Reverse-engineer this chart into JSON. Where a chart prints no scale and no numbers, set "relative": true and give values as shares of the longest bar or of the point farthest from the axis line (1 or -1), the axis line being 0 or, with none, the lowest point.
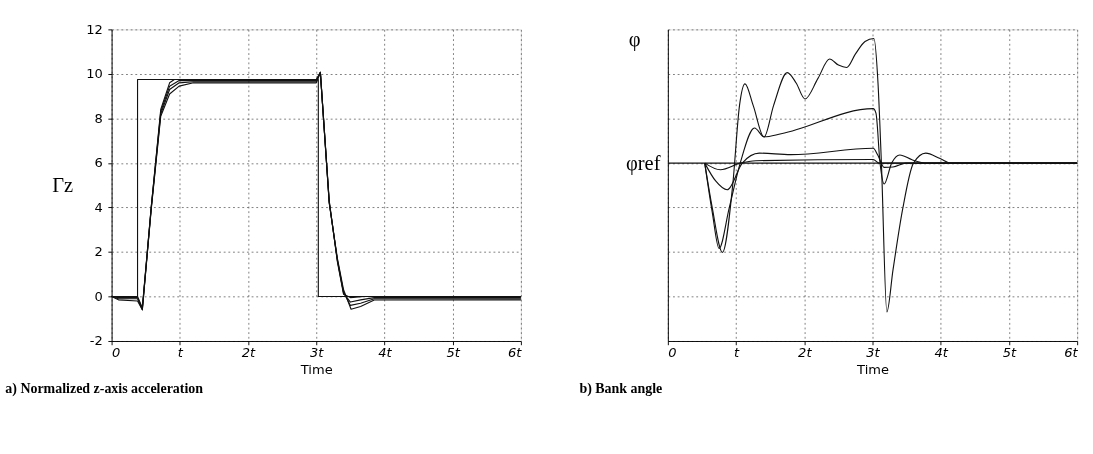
{
  "chart_data": [
    {
      "type": "line",
      "title": "a) Normalized z-axis acceleration",
      "xlabel": "Time",
      "ylabel": "Γz",
      "grid": true,
      "xlim": [
        0,
        6
      ],
      "xticks": [
        0,
        {
          "value": 1,
          "label": "t"
        },
        {
          "value": 2,
          "label": "2t"
        },
        {
          "value": 3,
          "label": "3t"
        },
        {
          "value": 4,
          "label": "4t"
        },
        {
          "value": 5,
          "label": "5t"
        },
        {
          "value": 6,
          "label": "6t"
        }
      ],
      "ylim": [
        -2,
        12
      ],
      "yticks": [
        -2,
        0,
        2,
        4,
        6,
        8,
        10,
        12
      ],
      "series": [
        {
          "color": "#111111",
          "x": [
            0,
            0.38,
            0.38,
            3.03,
            3.03,
            6
          ],
          "values": [
            0,
            0,
            9.75,
            9.75,
            0,
            0
          ]
        },
        {
          "color": "#111111",
          "x": [
            0,
            0.1,
            0.38,
            0.45,
            0.58,
            0.72,
            0.85,
            0.99,
            1.2,
            2.9,
            3.0,
            3.06,
            3.19,
            3.31,
            3.4,
            3.51,
            3.65,
            3.85,
            6
          ],
          "values": [
            0,
            -0.15,
            -0.2,
            -0.6,
            3.9,
            8.1,
            9.1,
            9.45,
            9.6,
            9.6,
            9.6,
            10.05,
            4.2,
            1.7,
            0.3,
            -0.57,
            -0.45,
            -0.16,
            -0.15
          ]
        },
        {
          "color": "#111111",
          "x": [
            0,
            0.1,
            0.38,
            0.45,
            0.58,
            0.72,
            0.85,
            0.99,
            1.2,
            2.9,
            3.0,
            3.06,
            3.19,
            3.31,
            3.4,
            3.5,
            3.65,
            3.85,
            6
          ],
          "values": [
            0,
            -0.1,
            -0.1,
            -0.6,
            3.95,
            8.2,
            9.3,
            9.6,
            9.65,
            9.65,
            9.65,
            10.07,
            4.2,
            1.65,
            0.2,
            -0.4,
            -0.3,
            -0.1,
            -0.1
          ]
        },
        {
          "color": "#111111",
          "x": [
            0,
            0.1,
            0.38,
            0.45,
            0.58,
            0.72,
            0.85,
            0.99,
            1.2,
            2.9,
            3.0,
            3.06,
            3.19,
            3.31,
            3.4,
            3.5,
            3.65,
            3.85,
            6
          ],
          "values": [
            0,
            -0.05,
            -0.05,
            -0.55,
            4.0,
            8.3,
            9.45,
            9.7,
            9.7,
            9.7,
            9.7,
            10.07,
            4.25,
            1.6,
            0.15,
            -0.25,
            -0.15,
            -0.05,
            -0.05
          ]
        },
        {
          "color": "#111111",
          "x": [
            0,
            0.38,
            0.45,
            0.58,
            0.72,
            0.85,
            0.92,
            1.2,
            2.9,
            3.0,
            3.06,
            3.19,
            3.31,
            3.4,
            3.5,
            3.7,
            6
          ],
          "values": [
            0,
            0,
            -0.5,
            4.0,
            8.4,
            9.6,
            9.75,
            9.75,
            9.75,
            9.75,
            10.07,
            4.3,
            1.55,
            0.1,
            -0.05,
            0,
            0
          ]
        }
      ]
    },
    {
      "type": "line",
      "title": "b) Bank angle",
      "xlabel": "Time",
      "ylabel": "φ",
      "grid": true,
      "relative": true,
      "annotations": [
        "φref"
      ],
      "xlim": [
        0,
        6
      ],
      "xticks": [
        0,
        {
          "value": 1,
          "label": "t"
        },
        {
          "value": 2,
          "label": "2t"
        },
        {
          "value": 3,
          "label": "3t"
        },
        {
          "value": 4,
          "label": "4t"
        },
        {
          "value": 5,
          "label": "5t"
        },
        {
          "value": 6,
          "label": "6t"
        }
      ],
      "series": [
        {
          "color": "#111111",
          "x": [
            0,
            6
          ],
          "values": [
            0.588,
            0.588
          ]
        },
        {
          "color": "#111111",
          "x": [
            0.54,
            0.65,
            0.8,
            0.95,
            1.05,
            1.13,
            1.25,
            1.41,
            1.55,
            1.75,
            1.88,
            2.01,
            2.2,
            2.37,
            2.5,
            2.62,
            2.75,
            2.89,
            3.02,
            3.08,
            3.13,
            3.21,
            3.3,
            3.44,
            3.6,
            3.78,
            3.99,
            4.15,
            6
          ],
          "values": [
            0.588,
            0.441,
            0.293,
            0.515,
            0.779,
            0.85,
            0.779,
            0.674,
            0.779,
            0.887,
            0.853,
            0.8,
            0.868,
            0.932,
            0.912,
            0.904,
            0.949,
            0.99,
            1,
            0.853,
            0.588,
            0.096,
            0.235,
            0.434,
            0.588,
            0.621,
            0.603,
            0.588,
            0.588
          ]
        },
        {
          "color": "#111111",
          "x": [
            0.54,
            0.65,
            0.75,
            0.9,
            1.06,
            1.27,
            1.41,
            1.66,
            3.01,
            3.05,
            3.11,
            3.17,
            3.28,
            3.4,
            3.58,
            3.81,
            6
          ],
          "values": [
            0.588,
            0.426,
            0.306,
            0.441,
            0.588,
            0.704,
            0.675,
            0.685,
            0.768,
            0.753,
            0.588,
            0.519,
            0.588,
            0.615,
            0.599,
            0.588,
            0.588
          ]
        },
        {
          "color": "#111111",
          "x": [
            0.54,
            0.7,
            0.87,
            1.09,
            1.34,
            1.8,
            3.01,
            3.08,
            3.17,
            3.3,
            3.49,
            6
          ],
          "values": [
            0.588,
            0.529,
            0.5,
            0.588,
            0.621,
            0.616,
            0.637,
            0.613,
            0.574,
            0.575,
            0.588,
            0.588
          ]
        },
        {
          "color": "#111111",
          "x": [
            0.54,
            0.77,
            1.06,
            1.29,
            3.01,
            3.1,
            6
          ],
          "values": [
            0.588,
            0.566,
            0.588,
            0.596,
            0.6,
            0.588,
            0.588
          ]
        }
      ]
    }
  ]
}
